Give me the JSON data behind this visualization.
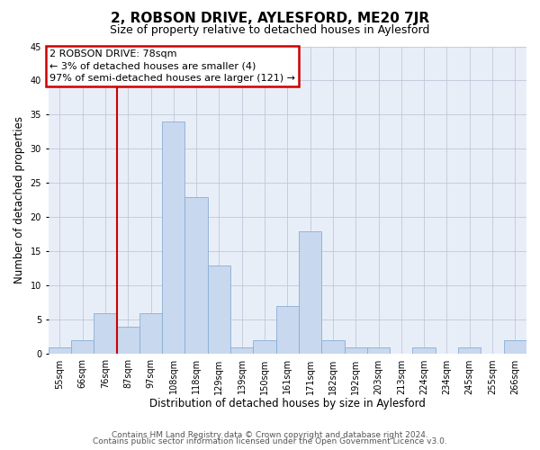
{
  "title": "2, ROBSON DRIVE, AYLESFORD, ME20 7JR",
  "subtitle": "Size of property relative to detached houses in Aylesford",
  "xlabel": "Distribution of detached houses by size in Aylesford",
  "ylabel": "Number of detached properties",
  "bar_labels": [
    "55sqm",
    "66sqm",
    "76sqm",
    "87sqm",
    "97sqm",
    "108sqm",
    "118sqm",
    "129sqm",
    "139sqm",
    "150sqm",
    "161sqm",
    "171sqm",
    "182sqm",
    "192sqm",
    "203sqm",
    "213sqm",
    "224sqm",
    "234sqm",
    "245sqm",
    "255sqm",
    "266sqm"
  ],
  "bar_values": [
    1,
    2,
    6,
    4,
    6,
    34,
    23,
    13,
    1,
    2,
    7,
    18,
    2,
    1,
    1,
    0,
    1,
    0,
    1,
    0,
    2
  ],
  "bar_color": "#c8d8ee",
  "bar_edge_color": "#8aaed4",
  "vline_x_index": 2.5,
  "vline_color": "#cc0000",
  "annotation_title": "2 ROBSON DRIVE: 78sqm",
  "annotation_line1": "← 3% of detached houses are smaller (4)",
  "annotation_line2": "97% of semi-detached houses are larger (121) →",
  "annotation_box_edgecolor": "#cc0000",
  "ylim": [
    0,
    45
  ],
  "yticks": [
    0,
    5,
    10,
    15,
    20,
    25,
    30,
    35,
    40,
    45
  ],
  "footer1": "Contains HM Land Registry data © Crown copyright and database right 2024.",
  "footer2": "Contains public sector information licensed under the Open Government Licence v3.0.",
  "bg_color": "#ffffff",
  "plot_bg_color": "#e8eef8",
  "grid_color": "#c0c8d8",
  "title_fontsize": 11,
  "subtitle_fontsize": 9,
  "axis_label_fontsize": 8.5,
  "tick_fontsize": 7,
  "annotation_fontsize": 8,
  "footer_fontsize": 6.5
}
